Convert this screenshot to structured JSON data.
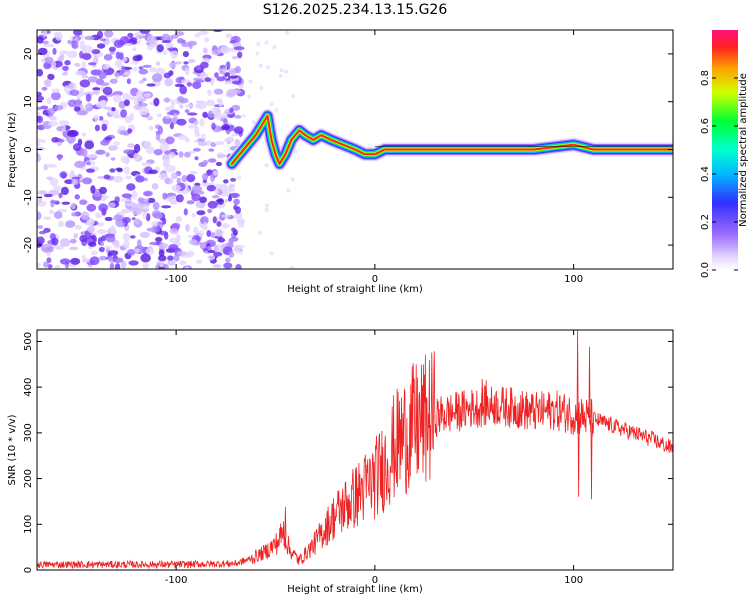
{
  "title": "S126.2025.234.13.15.G26",
  "chart_data": [
    {
      "type": "heatmap",
      "title": "S126.2025.234.13.15.G26",
      "xlabel": "Height of straight line (km)",
      "ylabel": "Frequency (Hz)",
      "xlim": [
        -170,
        150
      ],
      "ylim": [
        -25,
        25
      ],
      "xticks": [
        -100,
        0,
        100
      ],
      "yticks": [
        -20,
        -10,
        0,
        10,
        20
      ],
      "noise_region_x": [
        -170,
        -70
      ],
      "tonal_track": {
        "x": [
          -72,
          -68,
          -64,
          -60,
          -57,
          -54,
          -52,
          -50,
          -48,
          -45,
          -42,
          -38,
          -35,
          -31,
          -27,
          -22,
          -16,
          -10,
          -5,
          0,
          5,
          10,
          20,
          40,
          60,
          80,
          100,
          110,
          120,
          130,
          140,
          150
        ],
        "freq": [
          -3,
          -1,
          1,
          3,
          5,
          7,
          2,
          -1,
          -3,
          -1,
          2,
          4,
          3,
          2,
          3,
          2,
          1,
          0,
          -1,
          -1,
          0,
          0,
          0,
          0,
          0,
          0,
          1,
          0,
          0,
          0,
          0,
          0
        ]
      },
      "colorbar": {
        "label": "Normalized spectral amplitude",
        "range": [
          0,
          1
        ],
        "ticks": [
          "0.0",
          "0.2",
          "0.4",
          "0.6",
          "0.8"
        ]
      }
    },
    {
      "type": "line",
      "xlabel": "Height of straight line (km)",
      "ylabel": "SNR (10 * v/v)",
      "xlim": [
        -170,
        150
      ],
      "ylim": [
        0,
        525
      ],
      "xticks": [
        -100,
        0,
        100
      ],
      "yticks": [
        0,
        100,
        200,
        300,
        400,
        500
      ],
      "color": "#ee2222",
      "envelope": {
        "x": [
          -170,
          -100,
          -70,
          -62,
          -55,
          -49,
          -46,
          -43,
          -38,
          -30,
          -20,
          -10,
          0,
          5,
          10,
          15,
          20,
          25,
          30,
          40,
          50,
          60,
          70,
          80,
          90,
          100,
          110,
          120,
          130,
          140,
          150
        ],
        "y": [
          12,
          12,
          14,
          25,
          40,
          60,
          85,
          45,
          20,
          60,
          120,
          160,
          200,
          230,
          270,
          295,
          315,
          325,
          335,
          345,
          355,
          360,
          355,
          345,
          350,
          340,
          330,
          315,
          300,
          285,
          265
        ]
      },
      "spikes": [
        {
          "x": -45,
          "y": 138
        },
        {
          "x": 102,
          "y": 525
        },
        {
          "x": 102.5,
          "y": 160
        },
        {
          "x": 108,
          "y": 488
        },
        {
          "x": 109,
          "y": 155
        },
        {
          "x": 54,
          "y": 418
        },
        {
          "x": 56,
          "y": 415
        }
      ]
    }
  ]
}
